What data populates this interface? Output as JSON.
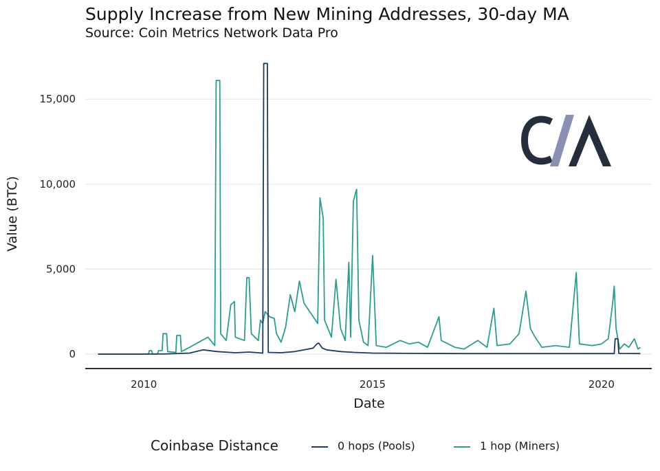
{
  "logo": {
    "text": "CM",
    "color_dark": "#262d3d",
    "color_accent": "#8a8fb3"
  },
  "chart_data": {
    "type": "line",
    "title": "Supply Increase from New Mining Addresses, 30-day MA",
    "subtitle": "Source: Coin Metrics Network Data Pro",
    "xlabel": "Date",
    "ylabel": "Value (BTC)",
    "xlim": [
      2008.72,
      2021.1
    ],
    "ylim": [
      -850,
      17800
    ],
    "x_ticks": [
      2010,
      2015,
      2020
    ],
    "x_tick_labels": [
      "2010",
      "2015",
      "2020"
    ],
    "y_ticks": [
      0,
      5000,
      10000,
      15000
    ],
    "y_tick_labels": [
      "0",
      "5,000",
      "10,000",
      "15,000"
    ],
    "grid": true,
    "legend_title": "Coinbase Distance",
    "legend_position": "bottom",
    "series": [
      {
        "name": "0 hops (Pools)",
        "color": "#1b3a5c",
        "points": [
          [
            2009.0,
            0
          ],
          [
            2010.0,
            0
          ],
          [
            2010.5,
            10
          ],
          [
            2011.0,
            60
          ],
          [
            2011.3,
            250
          ],
          [
            2011.6,
            150
          ],
          [
            2012.0,
            80
          ],
          [
            2012.3,
            120
          ],
          [
            2012.6,
            60
          ],
          [
            2012.62,
            17100
          ],
          [
            2012.7,
            17100
          ],
          [
            2012.72,
            100
          ],
          [
            2013.0,
            80
          ],
          [
            2013.3,
            150
          ],
          [
            2013.5,
            250
          ],
          [
            2013.7,
            350
          ],
          [
            2013.78,
            600
          ],
          [
            2013.82,
            650
          ],
          [
            2013.9,
            350
          ],
          [
            2014.0,
            250
          ],
          [
            2014.3,
            150
          ],
          [
            2014.6,
            100
          ],
          [
            2015.0,
            60
          ],
          [
            2016.0,
            40
          ],
          [
            2017.0,
            30
          ],
          [
            2018.0,
            30
          ],
          [
            2019.0,
            30
          ],
          [
            2020.0,
            30
          ],
          [
            2020.28,
            30
          ],
          [
            2020.3,
            900
          ],
          [
            2020.36,
            900
          ],
          [
            2020.38,
            40
          ],
          [
            2020.85,
            30
          ]
        ]
      },
      {
        "name": "1 hop (Miners)",
        "color": "#2a9d8f",
        "points": [
          [
            2009.0,
            0
          ],
          [
            2009.9,
            0
          ],
          [
            2010.1,
            0
          ],
          [
            2010.12,
            200
          ],
          [
            2010.17,
            200
          ],
          [
            2010.19,
            0
          ],
          [
            2010.3,
            0
          ],
          [
            2010.32,
            200
          ],
          [
            2010.4,
            200
          ],
          [
            2010.42,
            1200
          ],
          [
            2010.5,
            1200
          ],
          [
            2010.52,
            150
          ],
          [
            2010.7,
            100
          ],
          [
            2010.72,
            1100
          ],
          [
            2010.8,
            1100
          ],
          [
            2010.82,
            150
          ],
          [
            2011.0,
            400
          ],
          [
            2011.2,
            700
          ],
          [
            2011.4,
            1000
          ],
          [
            2011.55,
            500
          ],
          [
            2011.58,
            16100
          ],
          [
            2011.66,
            16100
          ],
          [
            2011.68,
            1200
          ],
          [
            2011.8,
            800
          ],
          [
            2011.9,
            2900
          ],
          [
            2011.98,
            3100
          ],
          [
            2012.0,
            1000
          ],
          [
            2012.2,
            800
          ],
          [
            2012.25,
            4500
          ],
          [
            2012.3,
            4500
          ],
          [
            2012.35,
            1200
          ],
          [
            2012.5,
            800
          ],
          [
            2012.55,
            2000
          ],
          [
            2012.6,
            1800
          ],
          [
            2012.65,
            2500
          ],
          [
            2012.75,
            2200
          ],
          [
            2012.85,
            2100
          ],
          [
            2012.9,
            1200
          ],
          [
            2013.0,
            700
          ],
          [
            2013.1,
            1600
          ],
          [
            2013.2,
            3500
          ],
          [
            2013.3,
            2500
          ],
          [
            2013.4,
            4300
          ],
          [
            2013.5,
            3000
          ],
          [
            2013.6,
            2600
          ],
          [
            2013.7,
            2200
          ],
          [
            2013.8,
            1800
          ],
          [
            2013.85,
            9200
          ],
          [
            2013.92,
            8000
          ],
          [
            2013.95,
            2000
          ],
          [
            2014.1,
            1000
          ],
          [
            2014.2,
            4400
          ],
          [
            2014.3,
            1500
          ],
          [
            2014.4,
            800
          ],
          [
            2014.48,
            5400
          ],
          [
            2014.52,
            1000
          ],
          [
            2014.58,
            9000
          ],
          [
            2014.65,
            9700
          ],
          [
            2014.7,
            2000
          ],
          [
            2014.8,
            700
          ],
          [
            2014.9,
            500
          ],
          [
            2015.0,
            5800
          ],
          [
            2015.08,
            500
          ],
          [
            2015.3,
            400
          ],
          [
            2015.6,
            800
          ],
          [
            2015.8,
            600
          ],
          [
            2016.0,
            700
          ],
          [
            2016.2,
            400
          ],
          [
            2016.45,
            2200
          ],
          [
            2016.5,
            800
          ],
          [
            2016.8,
            400
          ],
          [
            2017.0,
            300
          ],
          [
            2017.3,
            800
          ],
          [
            2017.5,
            400
          ],
          [
            2017.65,
            2700
          ],
          [
            2017.72,
            500
          ],
          [
            2018.0,
            600
          ],
          [
            2018.2,
            1200
          ],
          [
            2018.35,
            3700
          ],
          [
            2018.45,
            1500
          ],
          [
            2018.55,
            1000
          ],
          [
            2018.7,
            400
          ],
          [
            2019.0,
            500
          ],
          [
            2019.3,
            400
          ],
          [
            2019.45,
            4800
          ],
          [
            2019.52,
            600
          ],
          [
            2019.8,
            500
          ],
          [
            2020.0,
            600
          ],
          [
            2020.15,
            900
          ],
          [
            2020.25,
            3100
          ],
          [
            2020.28,
            4000
          ],
          [
            2020.32,
            1500
          ],
          [
            2020.4,
            300
          ],
          [
            2020.5,
            600
          ],
          [
            2020.6,
            400
          ],
          [
            2020.72,
            900
          ],
          [
            2020.8,
            300
          ],
          [
            2020.85,
            400
          ]
        ]
      }
    ]
  }
}
